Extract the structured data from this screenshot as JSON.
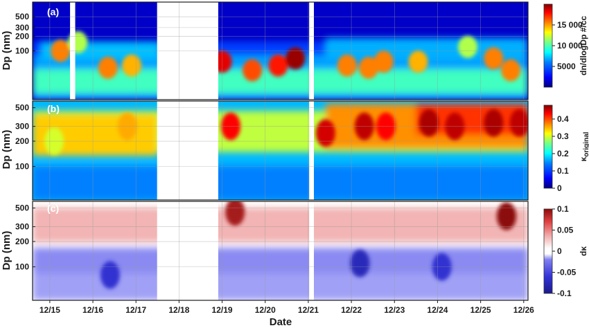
{
  "chart_data": [
    {
      "type": "heatmap",
      "panel_label": "(a)",
      "ylabel": "Dp (nm)",
      "yscale": "log",
      "ylim": [
        10,
        1000
      ],
      "yticks": [
        100,
        200,
        300,
        500
      ],
      "ytick_labels": [
        "100",
        "200",
        "300",
        "500"
      ],
      "colorbar": {
        "label": "dn/dlogDp #/cc",
        "range": [
          0,
          20000
        ],
        "ticks": [
          5000,
          10000,
          15000
        ],
        "tick_labels": [
          "5000",
          "10 000",
          "15 000"
        ]
      },
      "data_gaps": [
        [
          15.47,
          15.59
        ],
        [
          17.49,
          18.91
        ],
        [
          21.02,
          21.13
        ]
      ],
      "intensity_hotspots": [
        {
          "x": 15.25,
          "dp": 100,
          "level": 15000
        },
        {
          "x": 15.65,
          "dp": 150,
          "level": 11000
        },
        {
          "x": 16.35,
          "dp": 45,
          "level": 15000
        },
        {
          "x": 16.9,
          "dp": 50,
          "level": 14000
        },
        {
          "x": 19.0,
          "dp": 60,
          "level": 18000
        },
        {
          "x": 19.7,
          "dp": 40,
          "level": 16000
        },
        {
          "x": 20.3,
          "dp": 50,
          "level": 17000
        },
        {
          "x": 20.7,
          "dp": 70,
          "level": 19500
        },
        {
          "x": 21.9,
          "dp": 50,
          "level": 15000
        },
        {
          "x": 22.4,
          "dp": 45,
          "level": 15000
        },
        {
          "x": 22.75,
          "dp": 60,
          "level": 15000
        },
        {
          "x": 23.55,
          "dp": 60,
          "level": 14000
        },
        {
          "x": 24.7,
          "dp": 120,
          "level": 11000
        },
        {
          "x": 25.3,
          "dp": 70,
          "level": 15000
        },
        {
          "x": 25.7,
          "dp": 40,
          "level": 15000
        }
      ]
    },
    {
      "type": "heatmap",
      "panel_label": "(b)",
      "ylabel": "Dp (nm)",
      "yscale": "log",
      "ylim": [
        40,
        600
      ],
      "yticks": [
        100,
        200,
        300,
        500
      ],
      "ytick_labels": [
        "100",
        "200",
        "300",
        "500"
      ],
      "colorbar": {
        "label": "κoriginal",
        "label_main": "κ",
        "label_sub": "original",
        "range": [
          0,
          0.48
        ],
        "ticks": [
          0,
          0.1,
          0.2,
          0.3,
          0.4
        ],
        "tick_labels": [
          "0",
          "0.1",
          "0.2",
          "0.3",
          "0.4"
        ]
      },
      "data_gaps": [
        [
          17.49,
          18.91
        ],
        [
          21.02,
          21.13
        ]
      ],
      "intensity_hotspots": [
        {
          "x": 15.1,
          "dp": 200,
          "level": 0.28
        },
        {
          "x": 16.8,
          "dp": 300,
          "level": 0.34
        },
        {
          "x": 19.2,
          "dp": 300,
          "level": 0.42
        },
        {
          "x": 21.4,
          "dp": 250,
          "level": 0.44
        },
        {
          "x": 22.3,
          "dp": 300,
          "level": 0.45
        },
        {
          "x": 22.8,
          "dp": 300,
          "level": 0.42
        },
        {
          "x": 23.8,
          "dp": 330,
          "level": 0.46
        },
        {
          "x": 24.4,
          "dp": 300,
          "level": 0.45
        },
        {
          "x": 25.3,
          "dp": 330,
          "level": 0.46
        },
        {
          "x": 25.9,
          "dp": 330,
          "level": 0.45
        }
      ]
    },
    {
      "type": "heatmap",
      "panel_label": "(c)",
      "ylabel": "Dp (nm)",
      "yscale": "log",
      "ylim": [
        40,
        600
      ],
      "yticks": [
        100,
        200,
        300,
        500
      ],
      "ytick_labels": [
        "100",
        "200",
        "300",
        "500"
      ],
      "colorbar": {
        "label": "dκ",
        "range": [
          -0.1,
          0.1
        ],
        "ticks": [
          -0.1,
          -0.05,
          0,
          0.05,
          0.1
        ],
        "tick_labels": [
          "-0.1",
          "-0.05",
          "0",
          "0.05",
          "0.1"
        ]
      },
      "data_gaps": [
        [
          17.49,
          18.91
        ],
        [
          21.02,
          21.13
        ]
      ],
      "intensity_hotspots": [
        {
          "x": 19.3,
          "dp": 450,
          "level": 0.09
        },
        {
          "x": 25.6,
          "dp": 400,
          "level": 0.1
        },
        {
          "x": 16.4,
          "dp": 80,
          "level": -0.07
        },
        {
          "x": 22.2,
          "dp": 110,
          "level": -0.08
        },
        {
          "x": 24.1,
          "dp": 100,
          "level": -0.07
        }
      ]
    }
  ],
  "x_axis": {
    "label": "Date",
    "range": [
      14.6,
      26.1
    ],
    "ticks": [
      15,
      16,
      17,
      18,
      19,
      20,
      21,
      22,
      23,
      24,
      25,
      26
    ],
    "tick_labels": [
      "12/15",
      "12/16",
      "12/17",
      "12/18",
      "12/19",
      "12/20",
      "12/21",
      "12/22",
      "12/23",
      "12/24",
      "12/25",
      "12/26"
    ]
  },
  "colormaps": {
    "jet": [
      "#00007f",
      "#0000ff",
      "#007fff",
      "#00ffff",
      "#7fff7f",
      "#ffff00",
      "#ff7f00",
      "#ff0000",
      "#7f0000"
    ],
    "diverging": [
      "#1a1a8c",
      "#3333d9",
      "#8080f0",
      "#ffffff",
      "#f0a0a0",
      "#e04040",
      "#8c0a0a"
    ]
  }
}
